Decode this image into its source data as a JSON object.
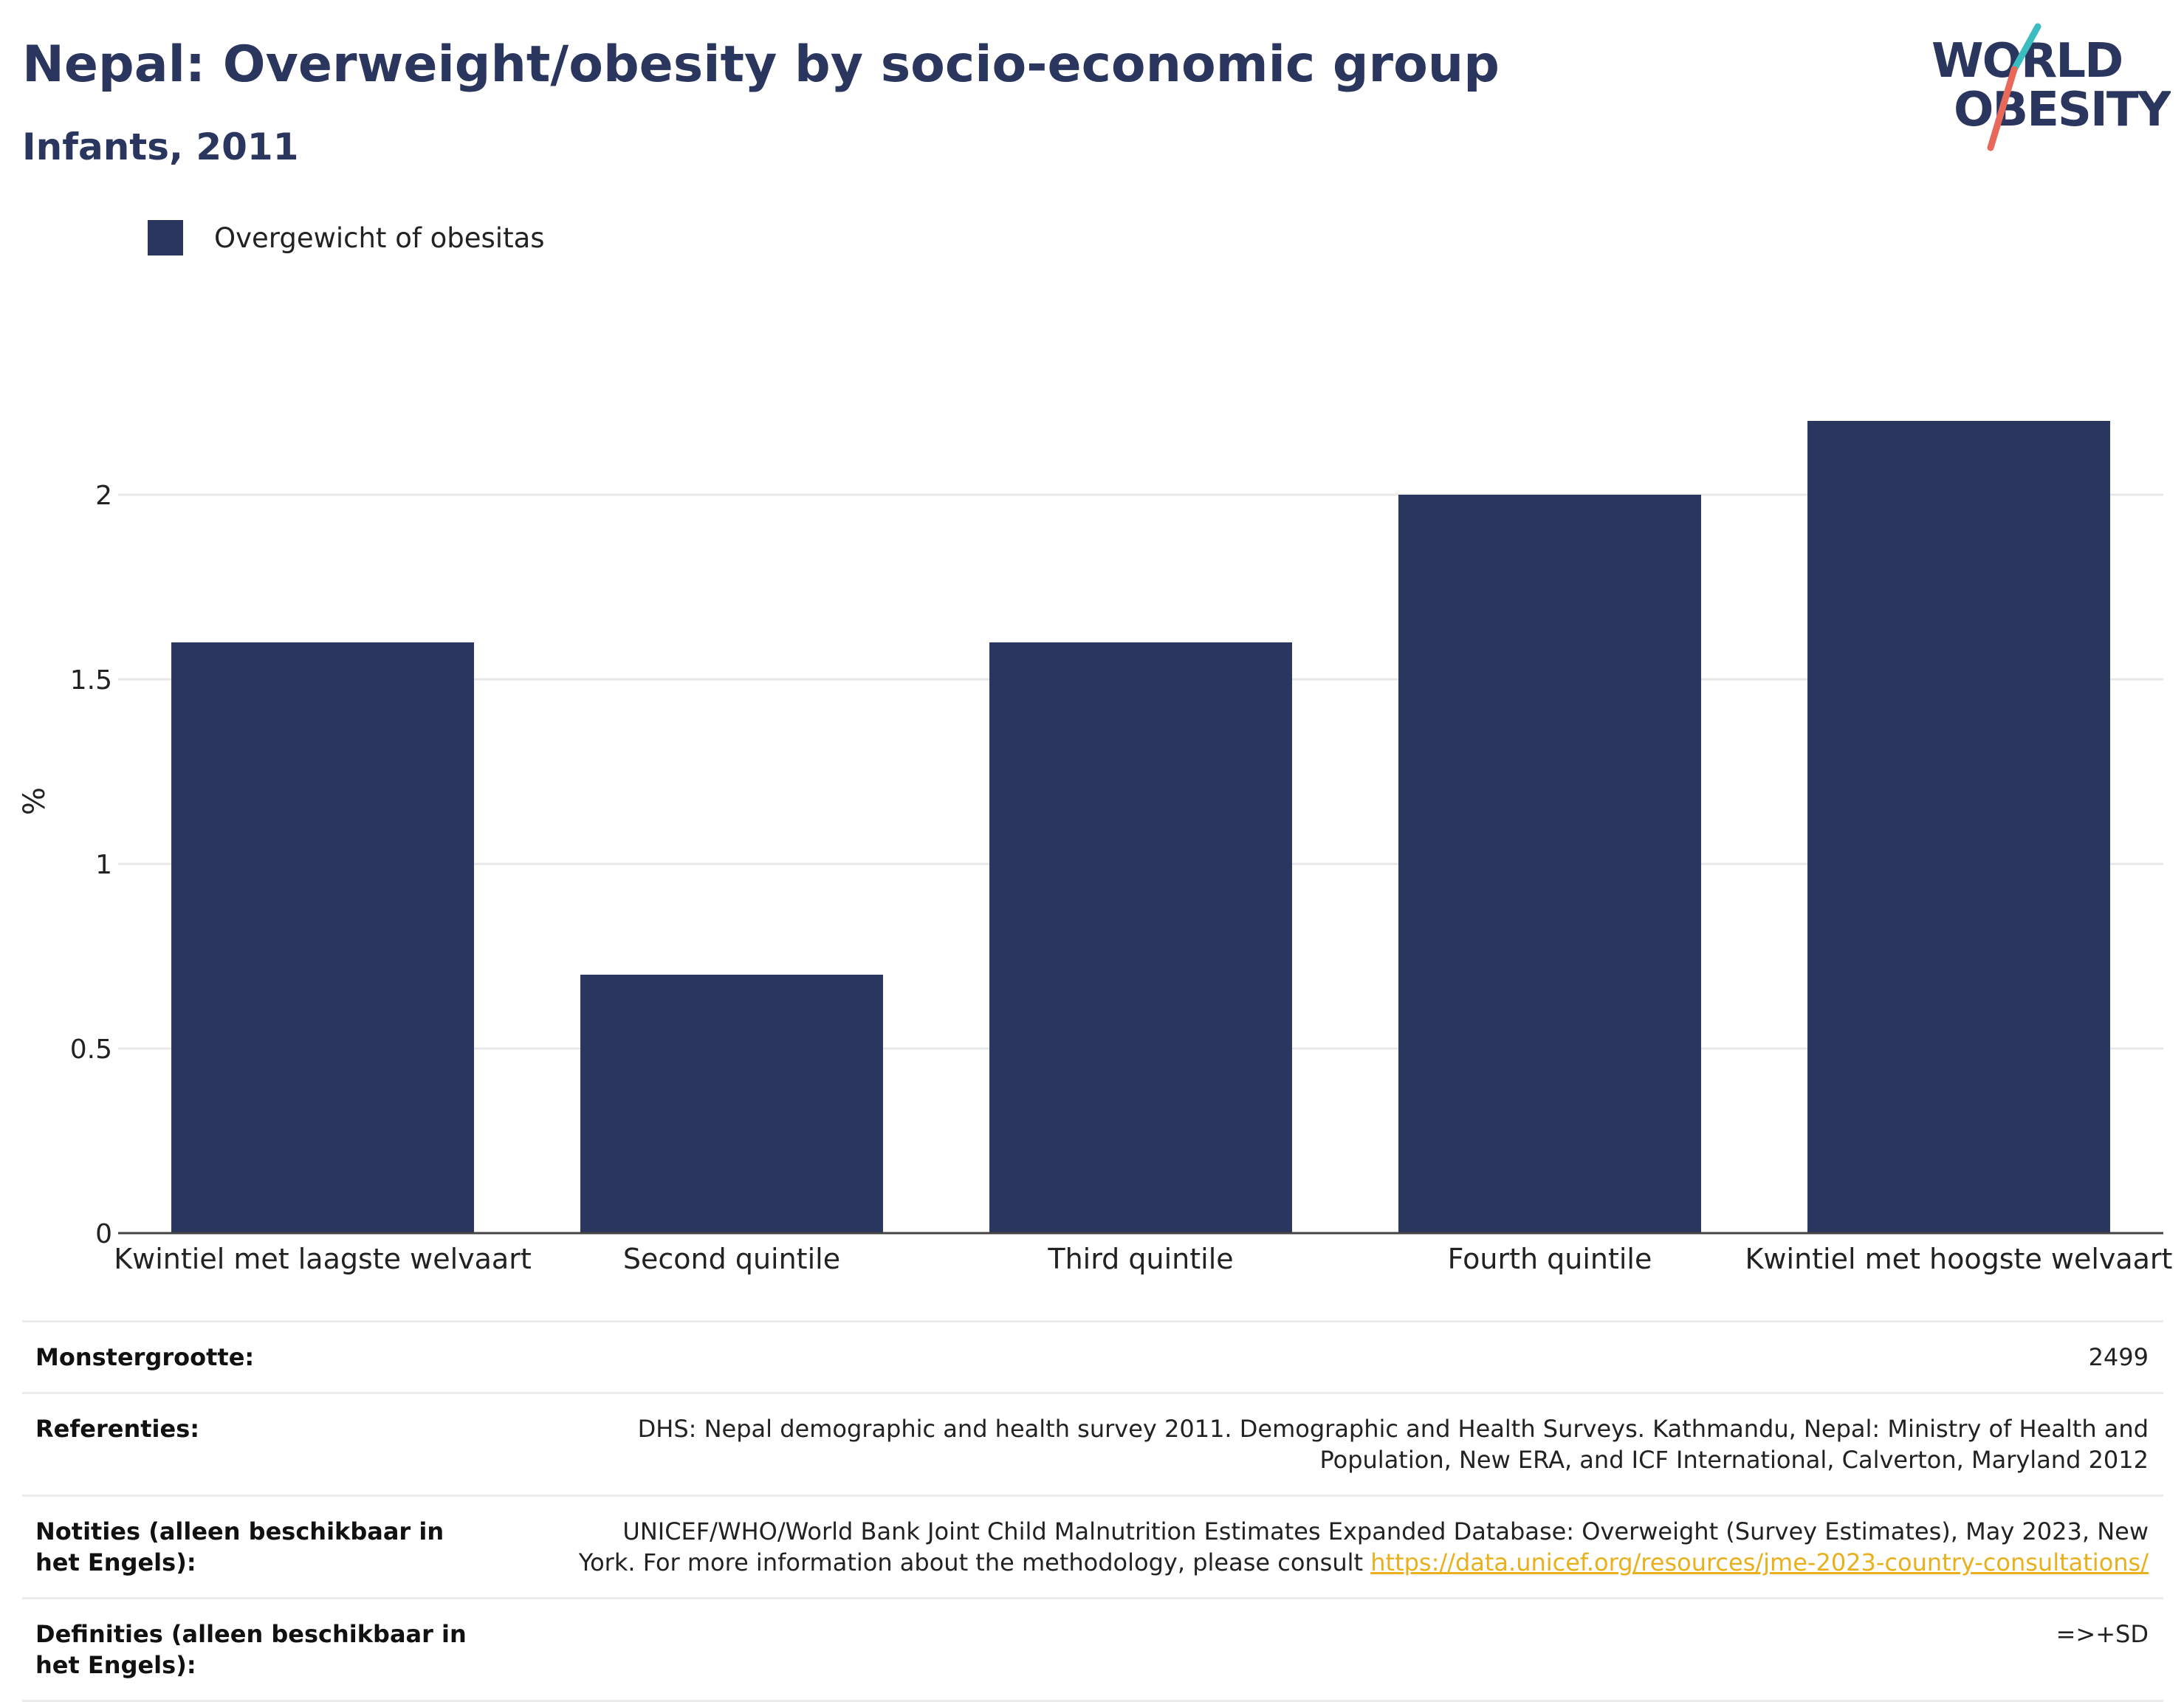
{
  "header": {
    "title": "Nepal: Overweight/obesity by socio-economic group",
    "subtitle": "Infants, 2011"
  },
  "logo": {
    "line1": "WORLD",
    "line2": "OBESITY",
    "colors": {
      "text": "#2b365f",
      "slash_top": "#3bbcc1",
      "slash_bottom": "#e8685a"
    }
  },
  "legend": {
    "label": "Overgewicht of obesitas"
  },
  "chart_data": {
    "type": "bar",
    "categories": [
      "Kwintiel met laagste welvaart",
      "Second quintile",
      "Third quintile",
      "Fourth quintile",
      "Kwintiel met hoogste welvaart"
    ],
    "series": [
      {
        "name": "Overgewicht of obesitas",
        "values": [
          1.6,
          0.7,
          1.6,
          2.0,
          2.2
        ],
        "color": "#2b365f"
      }
    ],
    "ylabel": "%",
    "ylim": [
      0,
      2.3
    ],
    "yticks": [
      0,
      0.5,
      1,
      1.5,
      2
    ],
    "ytick_labels": [
      "0",
      "0.5",
      "1",
      "1.5",
      "2"
    ],
    "grid": true,
    "legend_position": "top-left"
  },
  "meta": {
    "sample_size": {
      "label": "Monstergrootte:",
      "value": "2499"
    },
    "references": {
      "label": "Referenties:",
      "value": "DHS: Nepal demographic and health survey 2011. Demographic and Health Surveys. Kathmandu, Nepal: Ministry of Health and Population, New ERA, and ICF International, Calverton, Maryland 2012"
    },
    "notes": {
      "label": "Notities (alleen beschikbaar in het Engels):",
      "value": "UNICEF/WHO/World Bank Joint Child Malnutrition Estimates Expanded Database: Overweight (Survey Estimates), May 2023, New York. For more information about the methodology, please consult",
      "link": "https://data.unicef.org/resources/jme-2023-country-consultations/"
    },
    "definitions": {
      "label": "Definities (alleen beschikbaar in het Engels):",
      "value": "=>+SD"
    }
  }
}
